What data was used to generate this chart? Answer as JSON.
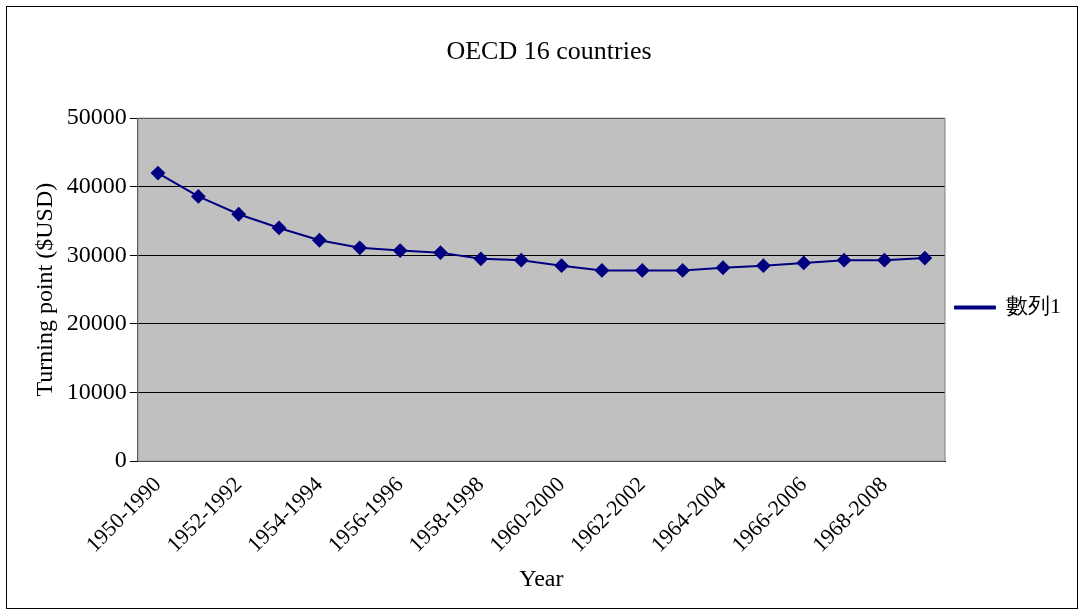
{
  "chart_data": {
    "type": "line",
    "title": "OECD 16 countries",
    "xlabel": "Year",
    "ylabel": "Turning point ($USD)",
    "categories": [
      "1950-1990",
      null,
      "1952-1992",
      null,
      "1954-1994",
      null,
      "1956-1996",
      null,
      "1958-1998",
      null,
      "1960-2000",
      null,
      "1962-2002",
      null,
      "1964-2004",
      null,
      "1966-2006",
      null,
      "1968-2008",
      null
    ],
    "series": [
      {
        "name": "數列1",
        "color": "#000080",
        "values": [
          42000,
          38600,
          36000,
          34000,
          32200,
          31100,
          30700,
          30400,
          29500,
          29300,
          28500,
          27800,
          27800,
          27800,
          28200,
          28500,
          28900,
          29300,
          29300,
          29600
        ]
      }
    ],
    "ylim": [
      0,
      50000
    ],
    "yticks": [
      0,
      10000,
      20000,
      30000,
      40000,
      50000
    ],
    "grid": "y",
    "legend": "right",
    "marker": "diamond",
    "line_style": "solid"
  }
}
